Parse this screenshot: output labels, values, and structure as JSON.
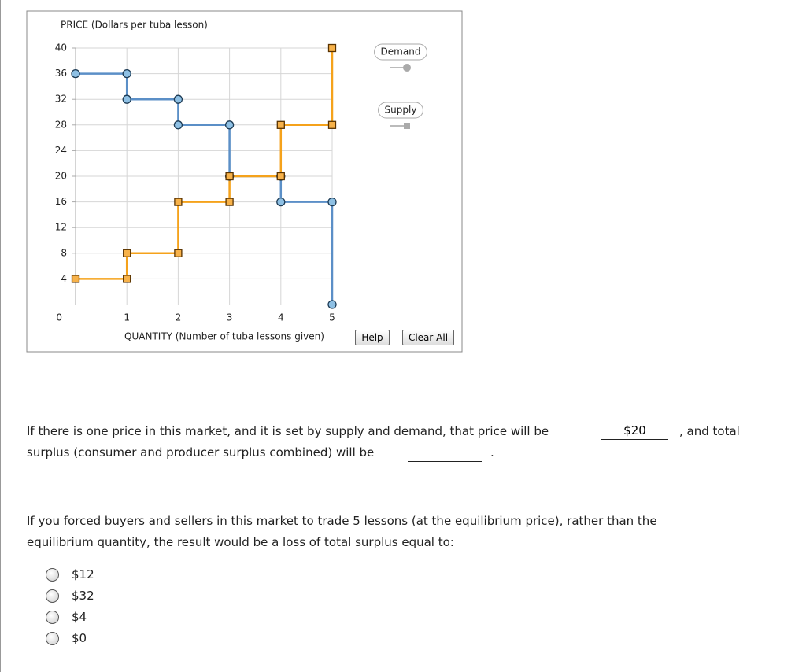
{
  "chart_data": {
    "type": "line",
    "y_label": "PRICE (Dollars per tuba lesson)",
    "x_label": "QUANTITY (Number of tuba lessons given)",
    "xlim": [
      0,
      5
    ],
    "xticks": [
      1,
      2,
      3,
      4,
      5
    ],
    "ylim": [
      0,
      40
    ],
    "yticks": [
      0,
      4,
      8,
      12,
      16,
      20,
      24,
      28,
      32,
      36,
      40
    ],
    "grid": true,
    "series": [
      {
        "name": "Demand",
        "color": "#5b8fc7",
        "marker": "circle",
        "x": [
          0,
          1,
          1,
          2,
          2,
          3,
          3,
          4,
          4,
          5,
          5
        ],
        "values": [
          36,
          36,
          32,
          32,
          28,
          28,
          20,
          20,
          16,
          16,
          0
        ]
      },
      {
        "name": "Supply",
        "color": "#f5a21b",
        "marker": "square",
        "x": [
          0,
          1,
          1,
          2,
          2,
          3,
          3,
          4,
          4,
          5,
          5
        ],
        "values": [
          4,
          4,
          8,
          8,
          16,
          16,
          20,
          20,
          28,
          28,
          40
        ]
      }
    ]
  },
  "buttons": [
    "Help",
    "Clear All"
  ],
  "question_1": {
    "text_before": "If there is one price in this market, and it is set by supply and demand, that price will be",
    "answer": "$20",
    "text_middle": ", and total",
    "text_line_2": "surplus (consumer and producer surplus combined) will be",
    "text_after": "."
  },
  "question_2": {
    "text_1": "If you forced buyers and sellers in this market to trade 5 lessons (at the equilibrium price), rather than the",
    "text_2": "equilibrium quantity, the result would be a loss of total surplus equal to:",
    "options": [
      "$12",
      "$32",
      "$4",
      "$0"
    ]
  }
}
